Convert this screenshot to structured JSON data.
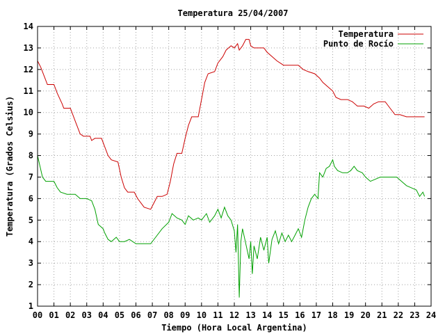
{
  "chart_data": {
    "type": "line",
    "title": "Temperatura 25/04/2007",
    "xlabel": "Tiempo (Hora Local Argentina)",
    "ylabel": "Temperatura (Grados Celsius)",
    "xlim": [
      0,
      24
    ],
    "ylim": [
      1,
      14
    ],
    "x_ticks": [
      "00",
      "01",
      "02",
      "03",
      "04",
      "05",
      "06",
      "07",
      "08",
      "09",
      "10",
      "11",
      "12",
      "13",
      "14",
      "15",
      "16",
      "17",
      "18",
      "19",
      "20",
      "21",
      "22",
      "23",
      "24"
    ],
    "y_ticks": [
      "1",
      "2",
      "3",
      "4",
      "5",
      "6",
      "7",
      "8",
      "9",
      "10",
      "11",
      "12",
      "13",
      "14"
    ],
    "grid": true,
    "legend_position": "top-right",
    "series": [
      {
        "name": "Temperatura",
        "color": "#cc0000",
        "points": [
          [
            0.0,
            12.4
          ],
          [
            0.2,
            12.1
          ],
          [
            0.4,
            11.7
          ],
          [
            0.6,
            11.3
          ],
          [
            1.0,
            11.3
          ],
          [
            1.2,
            10.9
          ],
          [
            1.5,
            10.4
          ],
          [
            1.6,
            10.2
          ],
          [
            2.0,
            10.2
          ],
          [
            2.3,
            9.6
          ],
          [
            2.6,
            9.0
          ],
          [
            2.8,
            8.9
          ],
          [
            3.2,
            8.9
          ],
          [
            3.3,
            8.7
          ],
          [
            3.5,
            8.8
          ],
          [
            3.9,
            8.8
          ],
          [
            4.1,
            8.4
          ],
          [
            4.3,
            8.0
          ],
          [
            4.5,
            7.8
          ],
          [
            4.9,
            7.7
          ],
          [
            5.1,
            7.0
          ],
          [
            5.3,
            6.5
          ],
          [
            5.5,
            6.3
          ],
          [
            5.9,
            6.3
          ],
          [
            6.1,
            6.0
          ],
          [
            6.3,
            5.8
          ],
          [
            6.5,
            5.6
          ],
          [
            6.9,
            5.5
          ],
          [
            7.1,
            5.8
          ],
          [
            7.3,
            6.1
          ],
          [
            7.6,
            6.1
          ],
          [
            7.9,
            6.2
          ],
          [
            8.1,
            6.8
          ],
          [
            8.3,
            7.6
          ],
          [
            8.5,
            8.1
          ],
          [
            8.8,
            8.1
          ],
          [
            9.0,
            8.8
          ],
          [
            9.2,
            9.4
          ],
          [
            9.4,
            9.8
          ],
          [
            9.8,
            9.8
          ],
          [
            10.0,
            10.6
          ],
          [
            10.2,
            11.4
          ],
          [
            10.4,
            11.8
          ],
          [
            10.8,
            11.9
          ],
          [
            11.0,
            12.3
          ],
          [
            11.3,
            12.6
          ],
          [
            11.5,
            12.9
          ],
          [
            11.8,
            13.1
          ],
          [
            12.0,
            13.0
          ],
          [
            12.2,
            13.2
          ],
          [
            12.3,
            12.9
          ],
          [
            12.5,
            13.1
          ],
          [
            12.7,
            13.4
          ],
          [
            12.9,
            13.4
          ],
          [
            13.0,
            13.1
          ],
          [
            13.2,
            13.0
          ],
          [
            13.5,
            13.0
          ],
          [
            13.8,
            13.0
          ],
          [
            14.0,
            12.8
          ],
          [
            14.3,
            12.6
          ],
          [
            14.6,
            12.4
          ],
          [
            15.0,
            12.2
          ],
          [
            15.5,
            12.2
          ],
          [
            15.9,
            12.2
          ],
          [
            16.2,
            12.0
          ],
          [
            16.5,
            11.9
          ],
          [
            16.9,
            11.8
          ],
          [
            17.2,
            11.6
          ],
          [
            17.4,
            11.4
          ],
          [
            17.7,
            11.2
          ],
          [
            18.0,
            11.0
          ],
          [
            18.2,
            10.7
          ],
          [
            18.5,
            10.6
          ],
          [
            18.9,
            10.6
          ],
          [
            19.2,
            10.5
          ],
          [
            19.5,
            10.3
          ],
          [
            19.9,
            10.3
          ],
          [
            20.2,
            10.2
          ],
          [
            20.5,
            10.4
          ],
          [
            20.8,
            10.5
          ],
          [
            21.2,
            10.5
          ],
          [
            21.5,
            10.2
          ],
          [
            21.8,
            9.9
          ],
          [
            22.1,
            9.9
          ],
          [
            22.5,
            9.8
          ],
          [
            23.0,
            9.8
          ],
          [
            23.4,
            9.8
          ],
          [
            23.6,
            9.8
          ]
        ]
      },
      {
        "name": "Punto de Rocío",
        "color": "#00a000",
        "points": [
          [
            0.0,
            8.0
          ],
          [
            0.15,
            7.5
          ],
          [
            0.3,
            7.0
          ],
          [
            0.5,
            6.8
          ],
          [
            1.0,
            6.8
          ],
          [
            1.2,
            6.5
          ],
          [
            1.4,
            6.3
          ],
          [
            1.8,
            6.2
          ],
          [
            2.3,
            6.2
          ],
          [
            2.6,
            6.0
          ],
          [
            3.0,
            6.0
          ],
          [
            3.3,
            5.9
          ],
          [
            3.5,
            5.5
          ],
          [
            3.7,
            4.8
          ],
          [
            4.0,
            4.6
          ],
          [
            4.1,
            4.4
          ],
          [
            4.3,
            4.1
          ],
          [
            4.5,
            4.0
          ],
          [
            4.8,
            4.2
          ],
          [
            5.0,
            4.0
          ],
          [
            5.3,
            4.0
          ],
          [
            5.6,
            4.1
          ],
          [
            6.0,
            3.9
          ],
          [
            6.5,
            3.9
          ],
          [
            6.9,
            3.9
          ],
          [
            7.2,
            4.2
          ],
          [
            7.6,
            4.6
          ],
          [
            8.0,
            4.9
          ],
          [
            8.2,
            5.3
          ],
          [
            8.5,
            5.1
          ],
          [
            8.8,
            5.0
          ],
          [
            9.0,
            4.8
          ],
          [
            9.2,
            5.2
          ],
          [
            9.5,
            5.0
          ],
          [
            9.8,
            5.1
          ],
          [
            10.0,
            5.0
          ],
          [
            10.3,
            5.3
          ],
          [
            10.5,
            4.9
          ],
          [
            10.8,
            5.2
          ],
          [
            11.0,
            5.5
          ],
          [
            11.2,
            5.1
          ],
          [
            11.4,
            5.6
          ],
          [
            11.6,
            5.2
          ],
          [
            11.8,
            5.0
          ],
          [
            12.0,
            4.5
          ],
          [
            12.1,
            3.5
          ],
          [
            12.2,
            4.8
          ],
          [
            12.3,
            1.4
          ],
          [
            12.4,
            4.0
          ],
          [
            12.5,
            4.6
          ],
          [
            12.7,
            3.9
          ],
          [
            12.9,
            3.2
          ],
          [
            13.0,
            4.0
          ],
          [
            13.1,
            2.5
          ],
          [
            13.2,
            3.8
          ],
          [
            13.4,
            3.2
          ],
          [
            13.6,
            4.2
          ],
          [
            13.8,
            3.6
          ],
          [
            14.0,
            4.2
          ],
          [
            14.1,
            3.0
          ],
          [
            14.3,
            4.1
          ],
          [
            14.5,
            4.5
          ],
          [
            14.7,
            3.9
          ],
          [
            14.9,
            4.4
          ],
          [
            15.1,
            4.0
          ],
          [
            15.3,
            4.3
          ],
          [
            15.5,
            4.0
          ],
          [
            15.7,
            4.3
          ],
          [
            15.9,
            4.6
          ],
          [
            16.1,
            4.2
          ],
          [
            16.3,
            5.0
          ],
          [
            16.5,
            5.6
          ],
          [
            16.7,
            6.0
          ],
          [
            16.9,
            6.2
          ],
          [
            17.1,
            6.0
          ],
          [
            17.2,
            7.2
          ],
          [
            17.4,
            7.0
          ],
          [
            17.6,
            7.4
          ],
          [
            17.8,
            7.5
          ],
          [
            18.0,
            7.8
          ],
          [
            18.1,
            7.5
          ],
          [
            18.3,
            7.3
          ],
          [
            18.6,
            7.2
          ],
          [
            18.9,
            7.2
          ],
          [
            19.1,
            7.3
          ],
          [
            19.3,
            7.5
          ],
          [
            19.5,
            7.3
          ],
          [
            19.8,
            7.2
          ],
          [
            20.0,
            7.0
          ],
          [
            20.3,
            6.8
          ],
          [
            20.6,
            6.9
          ],
          [
            20.9,
            7.0
          ],
          [
            21.2,
            7.0
          ],
          [
            21.5,
            7.0
          ],
          [
            21.9,
            7.0
          ],
          [
            22.2,
            6.8
          ],
          [
            22.5,
            6.6
          ],
          [
            22.8,
            6.5
          ],
          [
            23.1,
            6.4
          ],
          [
            23.3,
            6.1
          ],
          [
            23.5,
            6.3
          ],
          [
            23.6,
            6.1
          ]
        ]
      }
    ]
  }
}
